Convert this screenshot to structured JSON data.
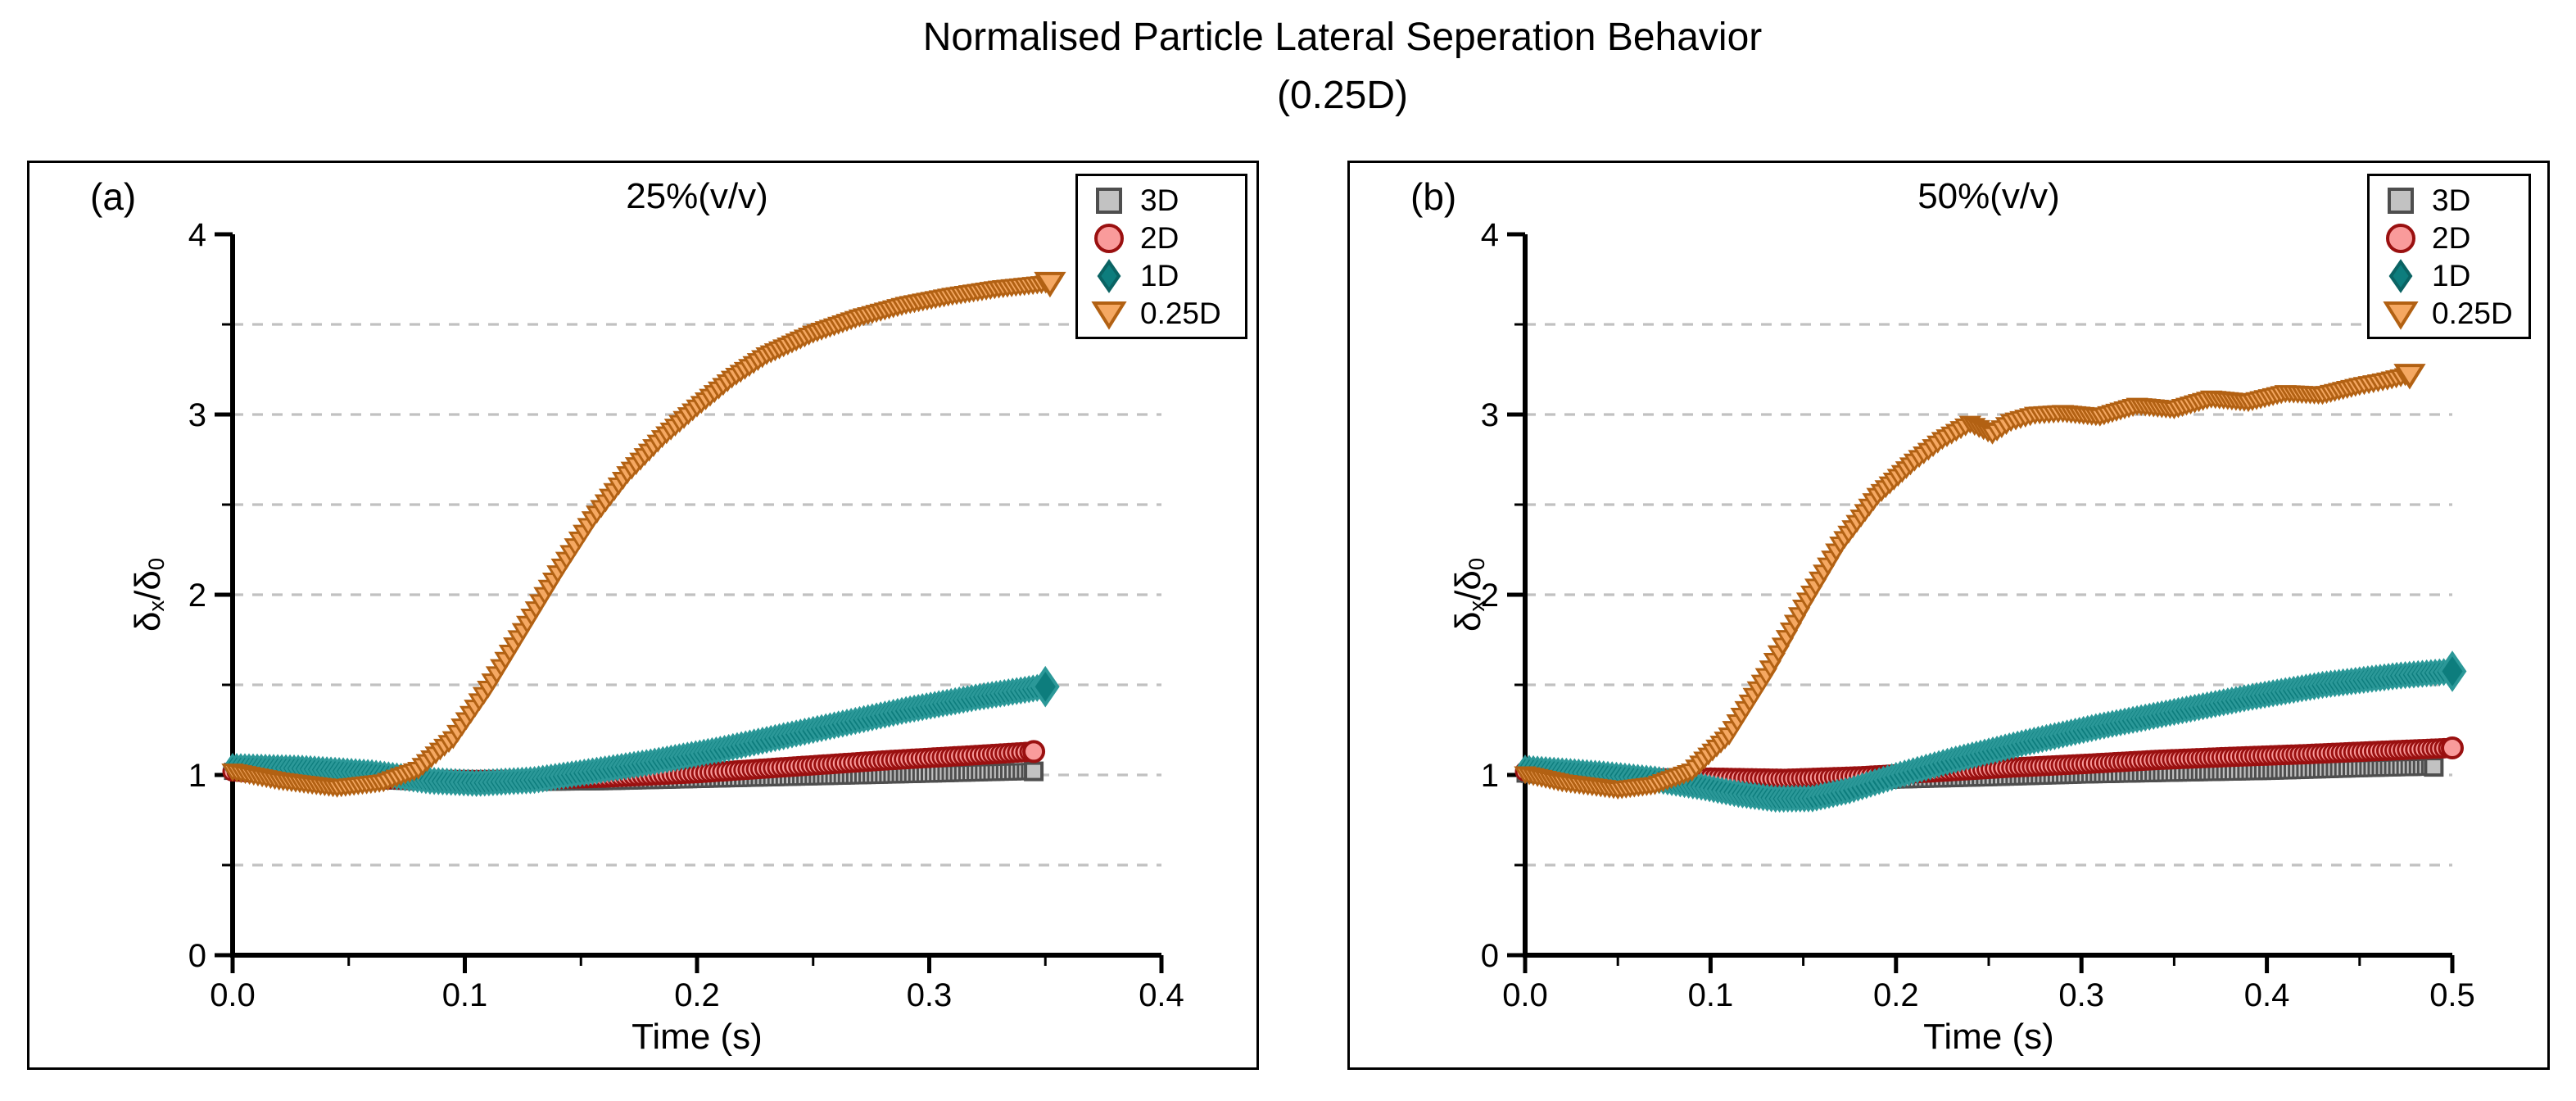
{
  "figure_title": {
    "line1": "Normalised Particle Lateral Seperation Behavior",
    "line2": "(0.25D)"
  },
  "ylabel_parts": {
    "d1": "δ",
    "s1": "x",
    "d2": "/δ",
    "s2": "0"
  },
  "colors": {
    "background": "#ffffff",
    "axis": "#000000",
    "grid": "#c1c1c1",
    "gray_fill": "#c2c2c2",
    "gray_stroke": "#4e4e4e",
    "pink_fill": "#f99b9b",
    "red_stroke": "#9a1010",
    "teal_fill": "#0d7d7d",
    "teal_stroke": "#2b9898",
    "orange_fill": "#f5a862",
    "orange_stroke": "#b26113"
  },
  "legend": {
    "position": "top-right",
    "items": [
      {
        "label": "3D",
        "marker": "square",
        "fill": "#c2c2c2",
        "stroke": "#4e4e4e"
      },
      {
        "label": "2D",
        "marker": "circle",
        "fill": "#f99b9b",
        "stroke": "#9a1010"
      },
      {
        "label": "1D",
        "marker": "diamond",
        "fill": "#0d7d7d",
        "stroke": "#0a6363"
      },
      {
        "label": "0.25D",
        "marker": "triangle-down",
        "fill": "#f5a862",
        "stroke": "#b26113"
      }
    ]
  },
  "chart_data": [
    {
      "type": "scatter",
      "panel_label": "(a)",
      "title": "25%(v/v)",
      "xlabel": "Time (s)",
      "ylabel": "δx/δ0",
      "xlim": [
        0,
        0.4
      ],
      "ylim": [
        0,
        4
      ],
      "xticks": {
        "values": [
          0,
          0.1,
          0.2,
          0.3,
          0.4
        ],
        "labels": [
          "0.0",
          "0.1",
          "0.2",
          "0.3",
          "0.4"
        ]
      },
      "yticks": {
        "values": [
          0,
          1,
          2,
          3,
          4
        ],
        "labels": [
          "0",
          "1",
          "2",
          "3",
          "4"
        ]
      },
      "minor_xticks": [
        0.05,
        0.15,
        0.25,
        0.35
      ],
      "minor_yticks": [
        0.5,
        1.5,
        2.5,
        3.5
      ],
      "gridlines_y": [
        0.5,
        1,
        1.5,
        2,
        2.5,
        3,
        3.5
      ],
      "grid_on": true,
      "series": [
        {
          "name": "3D",
          "marker": "square",
          "fill": "#c2c2c2",
          "stroke": "#4e4e4e",
          "x": [
            0,
            0.02,
            0.05,
            0.08,
            0.12,
            0.16,
            0.2,
            0.25,
            0.3,
            0.345
          ],
          "y": [
            1.02,
            1.0,
            0.975,
            0.962,
            0.958,
            0.963,
            0.975,
            0.99,
            1.005,
            1.02
          ]
        },
        {
          "name": "2D",
          "marker": "circle",
          "fill": "#f99b9b",
          "stroke": "#9a1010",
          "x": [
            0,
            0.02,
            0.05,
            0.08,
            0.12,
            0.16,
            0.2,
            0.24,
            0.28,
            0.32,
            0.345
          ],
          "y": [
            1.02,
            1.005,
            0.985,
            0.972,
            0.972,
            0.985,
            1.01,
            1.045,
            1.08,
            1.11,
            1.13
          ]
        },
        {
          "name": "1D",
          "marker": "diamond",
          "fill": "#0d7d7d",
          "stroke": "#2b9898",
          "x": [
            0,
            0.03,
            0.06,
            0.085,
            0.105,
            0.13,
            0.155,
            0.18,
            0.21,
            0.25,
            0.29,
            0.32,
            0.35
          ],
          "y": [
            1.045,
            1.035,
            1.01,
            0.968,
            0.955,
            0.972,
            1.02,
            1.07,
            1.14,
            1.25,
            1.36,
            1.43,
            1.49
          ]
        },
        {
          "name": "0.25D",
          "marker": "triangle-down",
          "fill": "#f5a862",
          "stroke": "#b26113",
          "x": [
            0,
            0.02,
            0.045,
            0.065,
            0.08,
            0.095,
            0.11,
            0.125,
            0.14,
            0.155,
            0.17,
            0.185,
            0.2,
            0.215,
            0.23,
            0.25,
            0.27,
            0.29,
            0.31,
            0.33,
            0.352
          ],
          "y": [
            1.02,
            0.97,
            0.93,
            0.96,
            1.03,
            1.2,
            1.48,
            1.8,
            2.12,
            2.42,
            2.67,
            2.87,
            3.04,
            3.2,
            3.33,
            3.45,
            3.54,
            3.61,
            3.66,
            3.7,
            3.73
          ]
        }
      ]
    },
    {
      "type": "scatter",
      "panel_label": "(b)",
      "title": "50%(v/v)",
      "xlabel": "Time (s)",
      "ylabel": "δx/δ0",
      "xlim": [
        0,
        0.5
      ],
      "ylim": [
        0,
        4
      ],
      "xticks": {
        "values": [
          0,
          0.1,
          0.2,
          0.3,
          0.4,
          0.5
        ],
        "labels": [
          "0.0",
          "0.1",
          "0.2",
          "0.3",
          "0.4",
          "0.5"
        ]
      },
      "yticks": {
        "values": [
          0,
          1,
          2,
          3,
          4
        ],
        "labels": [
          "0",
          "1",
          "2",
          "3",
          "4"
        ]
      },
      "minor_xticks": [
        0.05,
        0.15,
        0.25,
        0.35,
        0.45
      ],
      "minor_yticks": [
        0.5,
        1.5,
        2.5,
        3.5
      ],
      "gridlines_y": [
        0.5,
        1,
        1.5,
        2,
        2.5,
        3,
        3.5
      ],
      "grid_on": true,
      "series": [
        {
          "name": "3D",
          "marker": "square",
          "fill": "#c2c2c2",
          "stroke": "#4e4e4e",
          "x": [
            0,
            0.03,
            0.06,
            0.1,
            0.15,
            0.2,
            0.25,
            0.3,
            0.35,
            0.4,
            0.45,
            0.49
          ],
          "y": [
            1.005,
            0.985,
            0.965,
            0.955,
            0.958,
            0.972,
            0.985,
            1.0,
            1.01,
            1.02,
            1.035,
            1.045
          ]
        },
        {
          "name": "2D",
          "marker": "circle",
          "fill": "#f99b9b",
          "stroke": "#9a1010",
          "x": [
            0,
            0.03,
            0.06,
            0.1,
            0.14,
            0.18,
            0.22,
            0.26,
            0.3,
            0.34,
            0.38,
            0.42,
            0.46,
            0.5
          ],
          "y": [
            1.02,
            0.995,
            0.978,
            0.985,
            0.978,
            0.992,
            1.015,
            1.04,
            1.06,
            1.083,
            1.1,
            1.115,
            1.133,
            1.15
          ]
        },
        {
          "name": "1D",
          "marker": "diamond",
          "fill": "#0d7d7d",
          "stroke": "#2b9898",
          "x": [
            0,
            0.04,
            0.07,
            0.095,
            0.115,
            0.135,
            0.155,
            0.175,
            0.2,
            0.23,
            0.27,
            0.31,
            0.35,
            0.39,
            0.43,
            0.47,
            0.5
          ],
          "y": [
            1.035,
            1.005,
            0.975,
            0.935,
            0.895,
            0.868,
            0.87,
            0.915,
            0.995,
            1.08,
            1.18,
            1.27,
            1.35,
            1.43,
            1.5,
            1.55,
            1.575
          ]
        },
        {
          "name": "0.25D",
          "marker": "triangle-down",
          "fill": "#f5a862",
          "stroke": "#b26113",
          "x": [
            0,
            0.02,
            0.05,
            0.07,
            0.09,
            0.11,
            0.13,
            0.15,
            0.17,
            0.19,
            0.21,
            0.225,
            0.24,
            0.252,
            0.262,
            0.275,
            0.29,
            0.31,
            0.33,
            0.35,
            0.37,
            0.39,
            0.41,
            0.43,
            0.45,
            0.465,
            0.477
          ],
          "y": [
            1.005,
            0.96,
            0.92,
            0.945,
            1.02,
            1.22,
            1.55,
            1.93,
            2.28,
            2.55,
            2.74,
            2.86,
            2.95,
            2.89,
            2.96,
            3.0,
            3.01,
            2.99,
            3.05,
            3.03,
            3.09,
            3.07,
            3.12,
            3.11,
            3.16,
            3.19,
            3.22
          ]
        }
      ]
    }
  ]
}
